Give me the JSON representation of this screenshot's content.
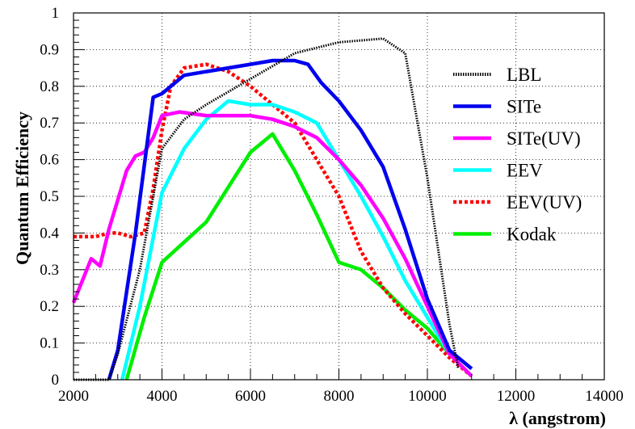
{
  "chart_data": {
    "type": "line",
    "xlabel": "λ (angstrom)",
    "ylabel": "Quantum Efficiency",
    "xlim": [
      2000,
      14000
    ],
    "ylim": [
      0,
      1
    ],
    "xticks": [
      2000,
      4000,
      6000,
      8000,
      10000,
      12000,
      14000
    ],
    "xtick_labels": [
      "2000",
      "4000",
      "6000",
      "8000",
      "10000",
      "12000",
      "14000"
    ],
    "yticks": [
      0,
      0.1,
      0.2,
      0.3,
      0.4,
      0.5,
      0.6,
      0.7,
      0.8,
      0.9,
      1
    ],
    "ytick_labels": [
      "0",
      "0.1",
      "0.2",
      "0.3",
      "0.4",
      "0.5",
      "0.6",
      "0.7",
      "0.8",
      "0.9",
      "1"
    ],
    "grid": true,
    "legend_position": "right",
    "series": [
      {
        "name": "LBL",
        "color": "#000000",
        "dash": "dotted",
        "x": [
          2000,
          2500,
          2800,
          3000,
          3500,
          4000,
          4500,
          5000,
          6000,
          7000,
          8000,
          9000,
          9500,
          10000,
          10500,
          10700
        ],
        "y": [
          0,
          0,
          0,
          0.07,
          0.3,
          0.63,
          0.71,
          0.75,
          0.82,
          0.89,
          0.92,
          0.93,
          0.89,
          0.55,
          0.15,
          0.03
        ]
      },
      {
        "name": "SITe",
        "color": "#0000ee",
        "dash": "solid",
        "x": [
          2800,
          3000,
          3400,
          3800,
          4000,
          4500,
          5000,
          5500,
          6000,
          6500,
          7000,
          7300,
          7600,
          8000,
          8500,
          9000,
          9500,
          10000,
          10500,
          11000
        ],
        "y": [
          0,
          0.08,
          0.4,
          0.77,
          0.78,
          0.83,
          0.84,
          0.85,
          0.86,
          0.87,
          0.87,
          0.86,
          0.81,
          0.76,
          0.68,
          0.58,
          0.41,
          0.22,
          0.08,
          0.03
        ]
      },
      {
        "name": "SITe(UV)",
        "color": "#ff00ff",
        "dash": "solid",
        "x": [
          2000,
          2400,
          2600,
          2800,
          3000,
          3200,
          3400,
          3600,
          3800,
          4000,
          4400,
          5000,
          6000,
          6500,
          7000,
          7500,
          8000,
          8500,
          9000,
          9500,
          10000,
          10500,
          11000
        ],
        "y": [
          0.21,
          0.33,
          0.31,
          0.41,
          0.49,
          0.57,
          0.61,
          0.62,
          0.66,
          0.72,
          0.73,
          0.72,
          0.72,
          0.71,
          0.69,
          0.66,
          0.6,
          0.53,
          0.44,
          0.33,
          0.2,
          0.07,
          0.01
        ]
      },
      {
        "name": "EEV",
        "color": "#00ffff",
        "dash": "solid",
        "x": [
          3100,
          3500,
          4000,
          4500,
          5000,
          5500,
          6000,
          6500,
          7000,
          7500,
          8000,
          8500,
          9000,
          9500,
          10000,
          10500,
          11000
        ],
        "y": [
          0,
          0.2,
          0.51,
          0.63,
          0.71,
          0.76,
          0.75,
          0.75,
          0.73,
          0.7,
          0.6,
          0.5,
          0.39,
          0.27,
          0.17,
          0.07,
          0.01
        ]
      },
      {
        "name": "EEV(UV)",
        "color": "#ff0000",
        "dash": "dotted",
        "x": [
          2000,
          2500,
          2800,
          3000,
          3300,
          3600,
          3800,
          4000,
          4200,
          4500,
          5000,
          5500,
          6000,
          6500,
          7000,
          7500,
          8000,
          8500,
          9000,
          9500,
          10000,
          10500,
          11000
        ],
        "y": [
          0.39,
          0.39,
          0.4,
          0.4,
          0.39,
          0.4,
          0.52,
          0.68,
          0.8,
          0.85,
          0.86,
          0.84,
          0.8,
          0.75,
          0.7,
          0.6,
          0.5,
          0.35,
          0.25,
          0.18,
          0.12,
          0.06,
          0.01
        ]
      },
      {
        "name": "Kodak",
        "color": "#00ee00",
        "dash": "solid",
        "x": [
          3200,
          3600,
          4000,
          5000,
          6000,
          6500,
          7000,
          7500,
          8000,
          8500,
          9000,
          9500,
          10000,
          10500,
          11000
        ],
        "y": [
          0,
          0.17,
          0.32,
          0.43,
          0.62,
          0.67,
          0.57,
          0.45,
          0.32,
          0.3,
          0.25,
          0.19,
          0.14,
          0.07,
          0.01
        ]
      }
    ]
  }
}
